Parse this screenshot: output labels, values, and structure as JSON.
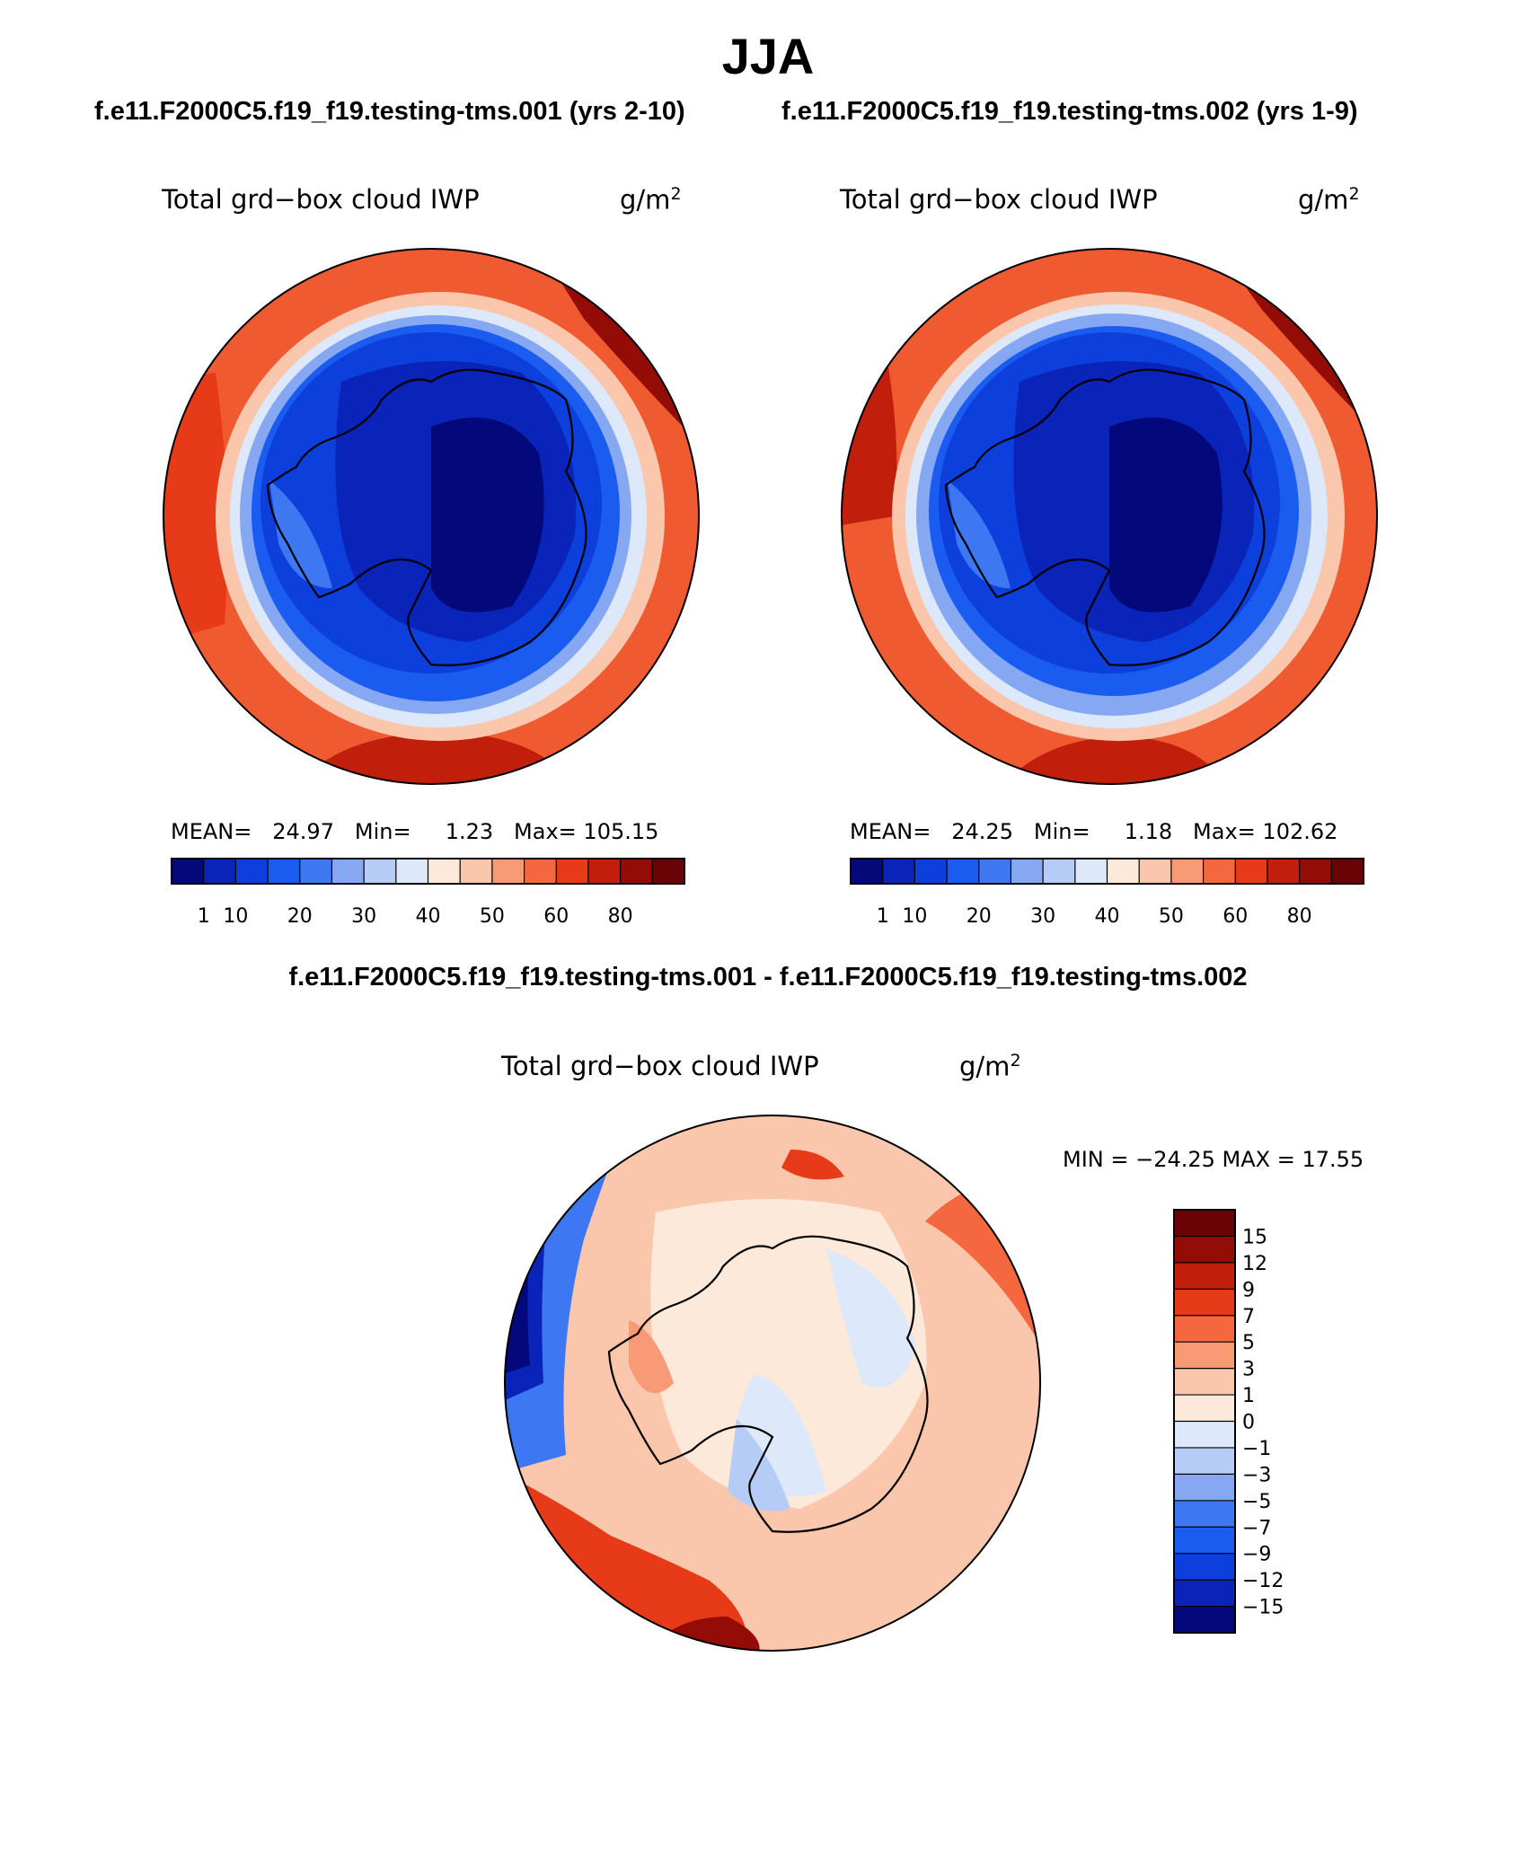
{
  "title": "JJA",
  "panels": [
    {
      "case_title": "f.e11.F2000C5.f19_f19.testing-tms.001 (yrs 2-10)",
      "variable": "Total grd−box cloud IWP",
      "units_base": "g/m",
      "units_exp": "2",
      "mean_label": "MEAN=",
      "mean_value": "24.97",
      "min_label": "Min=",
      "min_value": "1.23",
      "max_label": "Max=",
      "max_value": "105.15"
    },
    {
      "case_title": "f.e11.F2000C5.f19_f19.testing-tms.002 (yrs 1-9)",
      "variable": "Total grd−box cloud IWP",
      "units_base": "g/m",
      "units_exp": "2",
      "mean_label": "MEAN=",
      "mean_value": "24.25",
      "min_label": "Min=",
      "min_value": "1.18",
      "max_label": "Max=",
      "max_value": "102.62"
    }
  ],
  "colorbar_levels": [
    "1",
    "10",
    "20",
    "30",
    "40",
    "50",
    "60",
    "80"
  ],
  "colorbar_colors": [
    "#03087a",
    "#0a23b8",
    "#0d3fdc",
    "#1a5cf0",
    "#3d78f2",
    "#86a8f3",
    "#b5ccf6",
    "#dde9fb",
    "#fde9da",
    "#fbc7ac",
    "#f99a77",
    "#f4673f",
    "#e63a18",
    "#c11f0b",
    "#930c06",
    "#6a0305"
  ],
  "difference": {
    "title": "f.e11.F2000C5.f19_f19.testing-tms.001 - f.e11.F2000C5.f19_f19.testing-tms.002",
    "variable": "Total grd−box cloud IWP",
    "units_base": "g/m",
    "units_exp": "2",
    "minmax": "MIN = −24.25 MAX =   17.55",
    "levels": [
      "15",
      "12",
      "9",
      "7",
      "5",
      "3",
      "1",
      "0",
      "−1",
      "−3",
      "−5",
      "−7",
      "−9",
      "−12",
      "−15"
    ],
    "colors_top_to_bottom": [
      "#6a0305",
      "#930c06",
      "#c11f0b",
      "#e63a18",
      "#f4673f",
      "#f99a77",
      "#fbc7ac",
      "#fde9da",
      "#dde9fb",
      "#b5ccf6",
      "#86a8f3",
      "#3d78f2",
      "#1a5cf0",
      "#0d3fdc",
      "#0a23b8",
      "#03087a"
    ]
  }
}
